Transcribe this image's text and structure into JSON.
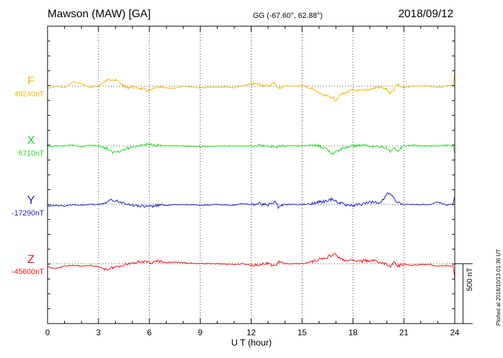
{
  "header": {
    "station": "Mawson (MAW)  [GA]",
    "coords": "GG (-67.60°,  62.88°)",
    "date": "2018/09/12"
  },
  "chart_data": {
    "type": "line",
    "title": "Mawson (MAW)  [GA]",
    "xlabel": "U T (hour)",
    "ylabel": "",
    "xlim": [
      0,
      24
    ],
    "x_ticks": [
      "0",
      "3",
      "6",
      "9",
      "12",
      "15",
      "18",
      "21",
      "24"
    ],
    "grid": true,
    "scale_bar": "500 nT",
    "series": [
      {
        "name": "F",
        "baseline": "49240nT",
        "color": "#f5b800",
        "points": [
          [
            0,
            0.3
          ],
          [
            0.5,
            0.0
          ],
          [
            1,
            0.2
          ],
          [
            1.5,
            -0.5
          ],
          [
            2,
            -0.3
          ],
          [
            2.5,
            0.2
          ],
          [
            3,
            0.0
          ],
          [
            3.5,
            -0.7
          ],
          [
            3.8,
            -0.9
          ],
          [
            4.2,
            -0.5
          ],
          [
            4.6,
            0.2
          ],
          [
            5,
            0.1
          ],
          [
            5.5,
            0.3
          ],
          [
            6,
            0.6
          ],
          [
            6.4,
            0.2
          ],
          [
            7,
            0.2
          ],
          [
            7.5,
            0.3
          ],
          [
            8,
            0.0
          ],
          [
            8.5,
            0.1
          ],
          [
            9,
            0.2
          ],
          [
            9.5,
            0.1
          ],
          [
            10,
            0.2
          ],
          [
            10.5,
            0.1
          ],
          [
            11,
            0.2
          ],
          [
            11.5,
            0.0
          ],
          [
            12,
            -0.3
          ],
          [
            12.5,
            -0.2
          ],
          [
            13,
            0.0
          ],
          [
            13.4,
            -0.4
          ],
          [
            13.6,
            0.3
          ],
          [
            14,
            0.0
          ],
          [
            14.5,
            0.0
          ],
          [
            15,
            -0.1
          ],
          [
            15.5,
            0.3
          ],
          [
            15.8,
            0.6
          ],
          [
            16.3,
            1.2
          ],
          [
            16.7,
            1.3
          ],
          [
            17.0,
            1.7
          ],
          [
            17.3,
            1.0
          ],
          [
            17.6,
            0.8
          ],
          [
            18,
            0.5
          ],
          [
            18.5,
            0.6
          ],
          [
            19,
            0.4
          ],
          [
            19.5,
            0.1
          ],
          [
            20,
            0.4
          ],
          [
            20.2,
            1.0
          ],
          [
            20.4,
            0.5
          ],
          [
            20.6,
            -0.2
          ],
          [
            21,
            0.2
          ],
          [
            21.5,
            0.0
          ],
          [
            22,
            0.0
          ],
          [
            22.5,
            0.0
          ],
          [
            23,
            0.2
          ],
          [
            23.5,
            0.0
          ],
          [
            23.9,
            -0.1
          ],
          [
            24,
            -1.8
          ]
        ]
      },
      {
        "name": "X",
        "baseline": "6710nT",
        "color": "#22dd22",
        "points": [
          [
            0,
            0.1
          ],
          [
            0.5,
            0.0
          ],
          [
            1,
            0.0
          ],
          [
            1.5,
            -0.1
          ],
          [
            2,
            0.1
          ],
          [
            2.5,
            -0.1
          ],
          [
            3,
            0.0
          ],
          [
            3.5,
            0.3
          ],
          [
            3.8,
            0.8
          ],
          [
            4.2,
            0.6
          ],
          [
            4.6,
            0.4
          ],
          [
            5,
            0.1
          ],
          [
            5.5,
            -0.1
          ],
          [
            6,
            -0.2
          ],
          [
            6.5,
            -0.1
          ],
          [
            7,
            0.0
          ],
          [
            8,
            0.0
          ],
          [
            9,
            0.1
          ],
          [
            10,
            0.0
          ],
          [
            11,
            0.0
          ],
          [
            12,
            0.0
          ],
          [
            12.5,
            -0.1
          ],
          [
            13,
            0.0
          ],
          [
            13.5,
            0.1
          ],
          [
            14,
            0.0
          ],
          [
            15,
            0.0
          ],
          [
            15.5,
            -0.1
          ],
          [
            16,
            0.0
          ],
          [
            16.5,
            0.4
          ],
          [
            16.8,
            1.0
          ],
          [
            17.1,
            0.6
          ],
          [
            17.5,
            0.2
          ],
          [
            18,
            0.0
          ],
          [
            18.5,
            -0.1
          ],
          [
            19,
            0.0
          ],
          [
            19.5,
            0.1
          ],
          [
            20,
            0.2
          ],
          [
            20.2,
            0.7
          ],
          [
            20.4,
            0.1
          ],
          [
            20.6,
            0.7
          ],
          [
            21,
            0.0
          ],
          [
            21.5,
            -0.1
          ],
          [
            22,
            0.0
          ],
          [
            23,
            0.0
          ],
          [
            23.5,
            -0.1
          ],
          [
            23.9,
            0.0
          ],
          [
            24,
            0.9
          ]
        ]
      },
      {
        "name": "Y",
        "baseline": "-17290nT",
        "color": "#1a1acc",
        "points": [
          [
            0,
            0.2
          ],
          [
            0.5,
            0.1
          ],
          [
            1,
            0.2
          ],
          [
            1.5,
            0.0
          ],
          [
            2,
            0.1
          ],
          [
            2.5,
            0.0
          ],
          [
            3,
            0.0
          ],
          [
            3.5,
            -0.2
          ],
          [
            3.8,
            -0.6
          ],
          [
            4.2,
            -0.3
          ],
          [
            4.6,
            -0.2
          ],
          [
            5,
            0.1
          ],
          [
            5.5,
            0.2
          ],
          [
            6,
            0.3
          ],
          [
            6.5,
            0.1
          ],
          [
            7,
            0.1
          ],
          [
            8,
            0.0
          ],
          [
            9,
            0.1
          ],
          [
            10,
            0.0
          ],
          [
            11,
            0.1
          ],
          [
            11.5,
            -0.1
          ],
          [
            12,
            0.0
          ],
          [
            12.5,
            -0.1
          ],
          [
            13,
            0.1
          ],
          [
            13.4,
            -0.4
          ],
          [
            13.6,
            0.3
          ],
          [
            14,
            0.0
          ],
          [
            15,
            0.0
          ],
          [
            15.5,
            -0.1
          ],
          [
            16,
            -0.3
          ],
          [
            16.5,
            -0.4
          ],
          [
            16.8,
            -0.7
          ],
          [
            17.1,
            -0.3
          ],
          [
            17.5,
            0.0
          ],
          [
            18,
            0.1
          ],
          [
            18.5,
            0.0
          ],
          [
            19,
            -0.3
          ],
          [
            19.5,
            -0.2
          ],
          [
            19.8,
            -0.6
          ],
          [
            20.0,
            -1.4
          ],
          [
            20.3,
            -1.1
          ],
          [
            20.5,
            -0.4
          ],
          [
            21,
            0.0
          ],
          [
            21.5,
            0.0
          ],
          [
            22,
            0.0
          ],
          [
            22.5,
            0.0
          ],
          [
            23,
            -0.3
          ],
          [
            23.5,
            0.1
          ],
          [
            23.9,
            -0.1
          ],
          [
            24,
            -1.0
          ]
        ]
      },
      {
        "name": "Z",
        "baseline": "-45600nT",
        "color": "#ee1111",
        "points": [
          [
            0,
            0.4
          ],
          [
            0.5,
            0.6
          ],
          [
            1,
            0.3
          ],
          [
            1.5,
            0.2
          ],
          [
            2,
            0.3
          ],
          [
            2.5,
            0.2
          ],
          [
            3,
            0.4
          ],
          [
            3.5,
            0.7
          ],
          [
            3.8,
            0.5
          ],
          [
            4.2,
            0.3
          ],
          [
            4.6,
            0.1
          ],
          [
            5,
            -0.1
          ],
          [
            5.5,
            -0.3
          ],
          [
            6,
            -0.1
          ],
          [
            6.5,
            -0.3
          ],
          [
            7,
            -0.1
          ],
          [
            7.5,
            -0.2
          ],
          [
            8,
            -0.1
          ],
          [
            9,
            0.0
          ],
          [
            10,
            0.0
          ],
          [
            11,
            0.1
          ],
          [
            11.5,
            0.0
          ],
          [
            12,
            0.2
          ],
          [
            12.5,
            0.1
          ],
          [
            13,
            0.0
          ],
          [
            13.4,
            0.3
          ],
          [
            13.6,
            -0.2
          ],
          [
            14,
            0.0
          ],
          [
            15,
            0.0
          ],
          [
            15.5,
            -0.2
          ],
          [
            16,
            -0.5
          ],
          [
            16.5,
            -0.8
          ],
          [
            16.9,
            -1.2
          ],
          [
            17.2,
            -0.7
          ],
          [
            17.6,
            -0.3
          ],
          [
            18,
            -0.4
          ],
          [
            18.5,
            -0.3
          ],
          [
            19,
            -0.4
          ],
          [
            19.5,
            -0.2
          ],
          [
            20,
            0.1
          ],
          [
            20.2,
            0.4
          ],
          [
            20.4,
            -0.2
          ],
          [
            20.6,
            0.3
          ],
          [
            21,
            0.1
          ],
          [
            21.5,
            0.2
          ],
          [
            22,
            0.1
          ],
          [
            22.5,
            0.1
          ],
          [
            23,
            0.3
          ],
          [
            23.5,
            0.2
          ],
          [
            23.9,
            0.3
          ],
          [
            24,
            1.7
          ]
        ]
      }
    ]
  },
  "footer": {
    "plotted": "Plotted at 2018/10/13 01:36 UT"
  }
}
